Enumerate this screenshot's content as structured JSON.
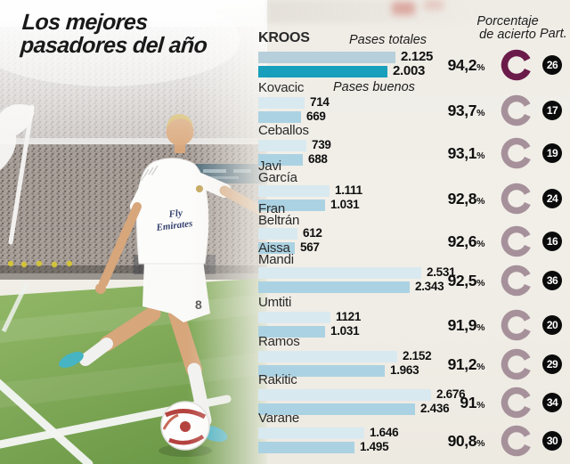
{
  "title": {
    "line1": "Los mejores",
    "line2": "pasadores del año"
  },
  "header": {
    "pct_line1": "Porcentaje",
    "pct_line2": "de acierto",
    "part": "Part."
  },
  "colors": {
    "bar_total_hl": "#b6cfda",
    "bar_good_hl": "#179fbb",
    "bar_total": "#d9e9f0",
    "bar_good": "#abd2e2",
    "gauge_hl": "#6b1b49",
    "gauge": "#a6919b",
    "badge_bg": "#0b0b0b"
  },
  "chart_data": {
    "type": "bar",
    "title": "Los mejores pasadores del año",
    "orientation": "horizontal",
    "series_labels": {
      "total": "Pases totales",
      "good": "Pases buenos"
    },
    "percent_header": "Porcentaje de acierto",
    "part_header": "Part.",
    "percent_sign": "%",
    "xlim": [
      0,
      2676
    ],
    "players": [
      {
        "name": "Kroos",
        "name_lines": [
          "KROOS"
        ],
        "total": 2125,
        "total_label": "2.125",
        "good": 2003,
        "good_label": "2.003",
        "pct": "94,2",
        "part": "26",
        "highlight": true
      },
      {
        "name": "Kovacic",
        "name_lines": [
          "Kovacic"
        ],
        "total": 714,
        "total_label": "714",
        "good": 669,
        "good_label": "669",
        "pct": "93,7",
        "part": "17",
        "highlight": false
      },
      {
        "name": "Ceballos",
        "name_lines": [
          "Ceballos"
        ],
        "total": 739,
        "total_label": "739",
        "good": 688,
        "good_label": "688",
        "pct": "93,1",
        "part": "19",
        "highlight": false
      },
      {
        "name": "Javi García",
        "name_lines": [
          "Javi",
          "García"
        ],
        "total": 1111,
        "total_label": "1.111",
        "good": 1031,
        "good_label": "1.031",
        "pct": "92,8",
        "part": "24",
        "highlight": false
      },
      {
        "name": "Fran Beltrán",
        "name_lines": [
          "Fran",
          "Beltrán"
        ],
        "total": 612,
        "total_label": "612",
        "good": 567,
        "good_label": "567",
        "pct": "92,6",
        "part": "16",
        "highlight": false
      },
      {
        "name": "Aissa Mandi",
        "name_lines": [
          "Aissa",
          "Mandi"
        ],
        "total": 2531,
        "total_label": "2.531",
        "good": 2343,
        "good_label": "2.343",
        "pct": "92,5",
        "part": "36",
        "highlight": false
      },
      {
        "name": "Umtiti",
        "name_lines": [
          "Umtiti"
        ],
        "total": 1121,
        "total_label": "1121",
        "good": 1031,
        "good_label": "1.031",
        "pct": "91,9",
        "part": "20",
        "highlight": false
      },
      {
        "name": "Ramos",
        "name_lines": [
          "Ramos"
        ],
        "total": 2152,
        "total_label": "2.152",
        "good": 1963,
        "good_label": "1.963",
        "pct": "91,2",
        "part": "29",
        "highlight": false
      },
      {
        "name": "Rakitic",
        "name_lines": [
          "Rakitic"
        ],
        "total": 2676,
        "total_label": "2.676",
        "good": 2436,
        "good_label": "2.436",
        "pct": "91",
        "part": "34",
        "highlight": false
      },
      {
        "name": "Varane",
        "name_lines": [
          "Varane"
        ],
        "total": 1646,
        "total_label": "1.646",
        "good": 1495,
        "good_label": "1.495",
        "pct": "90,8",
        "part": "30",
        "highlight": false
      }
    ]
  }
}
